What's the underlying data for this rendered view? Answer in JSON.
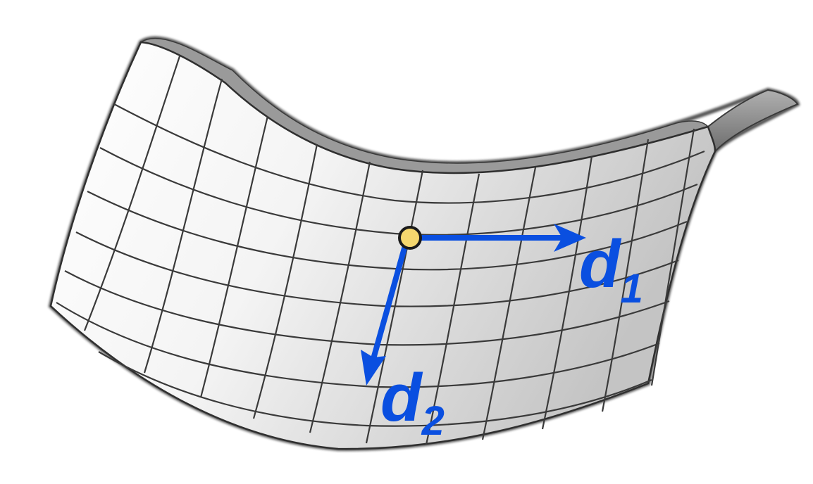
{
  "labels": {
    "d1": {
      "main": "d",
      "sub": "1"
    },
    "d2": {
      "main": "d",
      "sub": "2"
    }
  },
  "colors": {
    "arrow": "#0a4fe0",
    "label": "#0a4fe0",
    "point_fill": "#f5d76e",
    "point_stroke": "#1a1a1a",
    "grid_line": "#3a3a3a",
    "surface_light": "#ffffff",
    "surface_shadow": "#c8c8c8",
    "edge_band": "#8c8c8c"
  },
  "icons": {
    "surface": "saddle-surface-icon",
    "point": "critical-point-icon"
  }
}
